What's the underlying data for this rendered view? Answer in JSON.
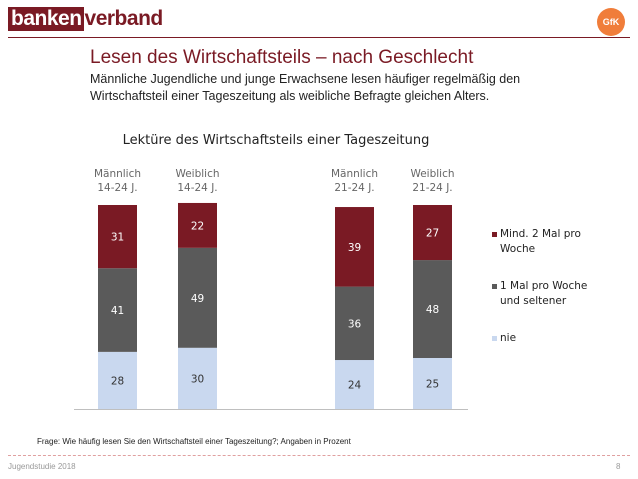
{
  "header": {
    "logo_part1": "banken",
    "logo_part2": "verband",
    "gfk_logo": "GfK"
  },
  "slide": {
    "title": "Lesen des Wirtschaftsteils – nach Geschlecht",
    "subtitle": "Männliche Jugendliche und junge Erwachsene lesen häufiger regelmäßig den Wirtschaftsteil einer Tageszeitung als weibliche Befragte gleichen Alters.",
    "question_note": "Frage: Wie häufig lesen Sie den Wirtschaftsteil einer Tageszeitung?; Angaben in Prozent"
  },
  "footer": {
    "source": "Jugendstudie 2018",
    "page_number": "8"
  },
  "colors": {
    "brand": "#7a1a24",
    "series_regular": "#7a1a24",
    "series_weekly": "#5a5a5a",
    "series_never": "#c9d8ef",
    "gfk": "#f07d3a"
  },
  "chart_data": {
    "type": "bar",
    "stacked": true,
    "title": "Lektüre des Wirtschaftsteils einer Tageszeitung",
    "categories": [
      "Männlich 14-24 J.",
      "Weiblich 14-24 J.",
      "Männlich 21-24 J.",
      "Weiblich 21-24 J."
    ],
    "category_lines": [
      [
        "Männlich",
        "14-24 J."
      ],
      [
        "Weiblich",
        "14-24 J."
      ],
      [
        "Männlich",
        "21-24 J."
      ],
      [
        "Weiblich",
        "21-24 J."
      ]
    ],
    "series": [
      {
        "name": "nie",
        "legend_lines": [
          "nie"
        ],
        "color": "#c9d8ef",
        "label_color": "#333333",
        "values": [
          28,
          30,
          24,
          25
        ]
      },
      {
        "name": "1 Mal pro Woche und seltener",
        "legend_lines": [
          "1 Mal pro Woche",
          "und seltener"
        ],
        "color": "#5a5a5a",
        "label_color": "#ffffff",
        "values": [
          41,
          49,
          36,
          48
        ]
      },
      {
        "name": "Mind. 2 Mal pro Woche",
        "legend_lines": [
          "Mind. 2 Mal pro",
          "Woche"
        ],
        "color": "#7a1a24",
        "label_color": "#ffffff",
        "values": [
          31,
          22,
          39,
          27
        ]
      }
    ],
    "ylim": [
      0,
      100
    ],
    "xlabel": "",
    "ylabel": "",
    "legend_position": "right",
    "grid": false
  }
}
